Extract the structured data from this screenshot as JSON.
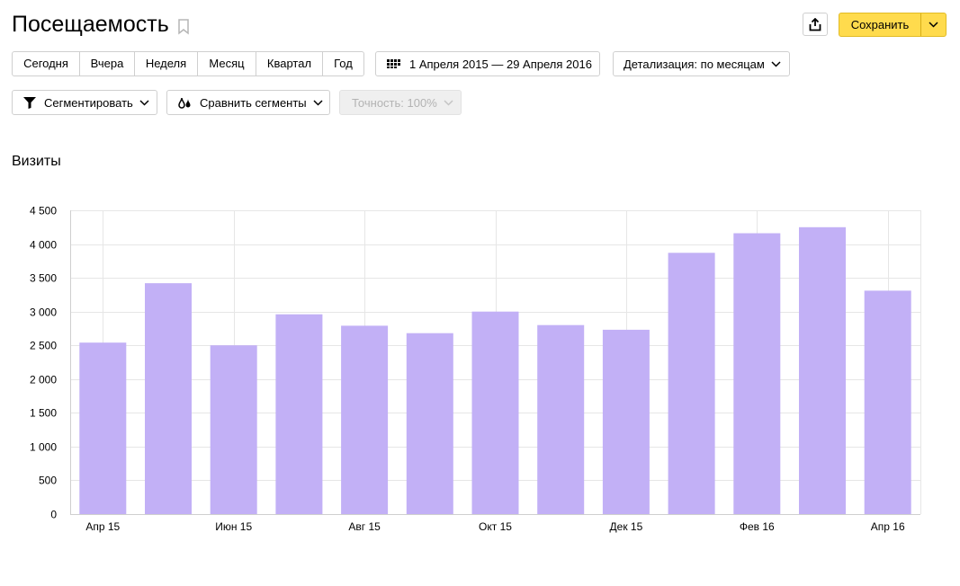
{
  "page": {
    "title": "Посещаемость"
  },
  "toolbar": {
    "save_label": "Сохранить",
    "periods": [
      "Сегодня",
      "Вчера",
      "Неделя",
      "Месяц",
      "Квартал",
      "Год"
    ],
    "date_range": "1 Апреля 2015 — 29 Апреля 2016",
    "detail_label": "Детализация: по месяцам",
    "segment_label": "Сегментировать",
    "compare_label": "Сравнить сегменты",
    "accuracy_label": "Точность: 100%"
  },
  "icons": {
    "bookmark": "bookmark-icon",
    "share": "share-icon",
    "calendar": "calendar-icon",
    "filter": "filter-icon",
    "compare": "compare-icon",
    "chevron": "chevron-down-icon"
  },
  "colors": {
    "accent": "#ffdb4d",
    "bar": "#c2b0f6"
  },
  "chart_data": {
    "type": "bar",
    "title": "Визиты",
    "categories": [
      "Апр 15",
      "",
      "Июн 15",
      "",
      "Авг 15",
      "",
      "Окт 15",
      "",
      "Дек 15",
      "",
      "Фев 16",
      "",
      "Апр 16"
    ],
    "values": [
      2540,
      3420,
      2500,
      2960,
      2790,
      2680,
      3000,
      2800,
      2730,
      3870,
      4160,
      4250,
      3310
    ],
    "ylim": [
      0,
      4500
    ],
    "yticks": [
      0,
      500,
      1000,
      1500,
      2000,
      2500,
      3000,
      3500,
      4000,
      4500
    ],
    "ytick_labels": [
      "0",
      "500",
      "1 000",
      "1 500",
      "2 000",
      "2 500",
      "3 000",
      "3 500",
      "4 000",
      "4 500"
    ],
    "grid": true
  }
}
